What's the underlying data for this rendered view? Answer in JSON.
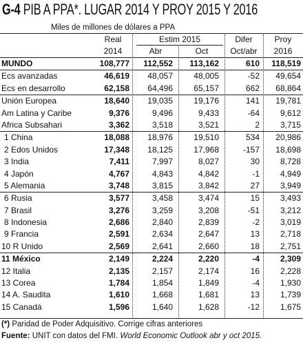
{
  "title": {
    "code": "G-4",
    "text": "PIB A PPA*. LUGAR 2014 Y PROY 2015 Y 2016"
  },
  "subtitle": "Miles de millones de dólares a PPA",
  "headers": {
    "real_top": "Real",
    "real_year": "2014",
    "estim_top": "Estim 2015",
    "abr": "Abr",
    "oct": "Oct",
    "difer_top": "Difer",
    "difer_sub": "Oct/abr",
    "proy_top": "Proy",
    "proy_year": "2016"
  },
  "rows": [
    {
      "name": "MUNDO",
      "real": "108,777",
      "abr": "112,552",
      "oct": "113,162",
      "dif": "610",
      "proy": "118,519",
      "bold": true,
      "indent": false
    },
    {
      "name": "Ecs avanzadas",
      "real": "46,619",
      "abr": "48,057",
      "oct": "48,005",
      "dif": "-52",
      "proy": "49,654",
      "bold": false,
      "indent": false
    },
    {
      "name": "Ecs en desarrollo",
      "real": "62,158",
      "abr": "64,496",
      "oct": "65,157",
      "dif": "662",
      "proy": "68,864",
      "bold": false,
      "indent": false
    },
    {
      "name": "Unión Europea",
      "real": "18,640",
      "abr": "19,035",
      "oct": "19,176",
      "dif": "141",
      "proy": "19,781",
      "bold": false,
      "indent": false
    },
    {
      "name": "Am Latina y Caribe",
      "real": "9,376",
      "abr": "9,496",
      "oct": "9,433",
      "dif": "-64",
      "proy": "9,612",
      "bold": false,
      "indent": false
    },
    {
      "name": "Africa Subsahari",
      "real": "3,362",
      "abr": "3,518",
      "oct": "3,521",
      "dif": "2",
      "proy": "3,715",
      "bold": false,
      "indent": false
    },
    {
      "name": "1 China",
      "real": "18,088",
      "abr": "18,976",
      "oct": "19,510",
      "dif": "534",
      "proy": "20,986",
      "bold": false,
      "indent": true
    },
    {
      "name": "2 Edos Unidos",
      "real": "17,348",
      "abr": "18,125",
      "oct": "17,968",
      "dif": "-157",
      "proy": "18,698",
      "bold": false,
      "indent": true
    },
    {
      "name": "3 India",
      "real": "7,411",
      "abr": "7,997",
      "oct": "8,027",
      "dif": "30",
      "proy": "8,728",
      "bold": false,
      "indent": true
    },
    {
      "name": "4 Japón",
      "real": "4,767",
      "abr": "4,843",
      "oct": "4,842",
      "dif": "-1",
      "proy": "4,949",
      "bold": false,
      "indent": true
    },
    {
      "name": "5 Alemania",
      "real": "3,748",
      "abr": "3,815",
      "oct": "3,842",
      "dif": "27",
      "proy": "3,949",
      "bold": false,
      "indent": true
    },
    {
      "name": "6 Rusia",
      "real": "3,577",
      "abr": "3,458",
      "oct": "3,474",
      "dif": "15",
      "proy": "3,493",
      "bold": false,
      "indent": true
    },
    {
      "name": "7 Brasil",
      "real": "3,276",
      "abr": "3,259",
      "oct": "3,208",
      "dif": "-51",
      "proy": "3,212",
      "bold": false,
      "indent": true
    },
    {
      "name": "8 Indonesia",
      "real": "2,686",
      "abr": "2,840",
      "oct": "2,839",
      "dif": "-2",
      "proy": "3,019",
      "bold": false,
      "indent": true
    },
    {
      "name": "9 Francia",
      "real": "2,591",
      "abr": "2,634",
      "oct": "2,647",
      "dif": "13",
      "proy": "2,718",
      "bold": false,
      "indent": true
    },
    {
      "name": "10 R Unido",
      "real": "2,569",
      "abr": "2,641",
      "oct": "2,660",
      "dif": "18",
      "proy": "2,751",
      "bold": false,
      "indent": false
    },
    {
      "name": "11 México",
      "real": "2,149",
      "abr": "2,224",
      "oct": "2,220",
      "dif": "-4",
      "proy": "2,309",
      "bold": true,
      "indent": false
    },
    {
      "name": "12 Italia",
      "real": "2,135",
      "abr": "2,157",
      "oct": "2,174",
      "dif": "16",
      "proy": "2,228",
      "bold": false,
      "indent": false
    },
    {
      "name": "13 Corea",
      "real": "1,784",
      "abr": "1,854",
      "oct": "1,849",
      "dif": "-4",
      "proy": "1,930",
      "bold": false,
      "indent": false
    },
    {
      "name": "14 A. Saudita",
      "real": "1,610",
      "abr": "1,668",
      "oct": "1,681",
      "dif": "13",
      "proy": "1,739",
      "bold": false,
      "indent": false
    },
    {
      "name": "15 Canadá",
      "real": "1,596",
      "abr": "1,640",
      "oct": "1,628",
      "dif": "-12",
      "proy": "1,675",
      "bold": false,
      "indent": false
    }
  ],
  "footnote": {
    "mark": "(*)",
    "text": " Paridad de Poder Adquisitivo. Corrige cifras anteriores"
  },
  "source": {
    "label": "Fuente:",
    "text": " UNIT con datos del FMI. ",
    "italic": "World Economic Outlook abr y oct  2015."
  }
}
